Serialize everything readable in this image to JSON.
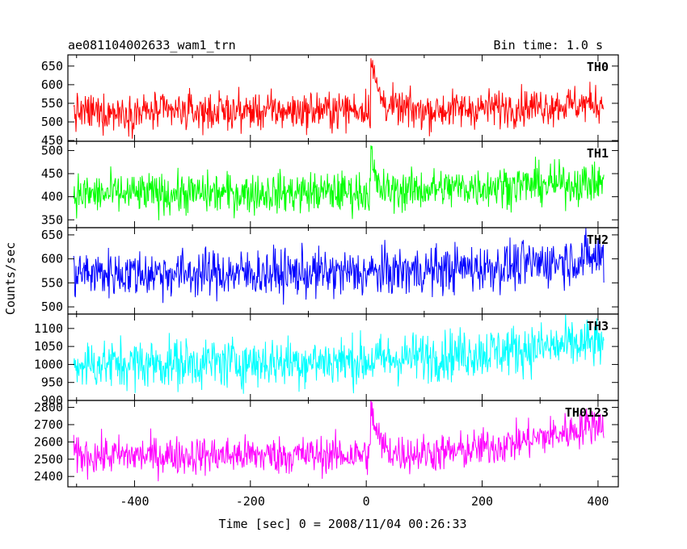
{
  "chart_data": {
    "type": "line",
    "title": "ae081104002633_wam1_trn",
    "subtitle": "Bin time: 1.0 s",
    "xlabel": "Time [sec] 0 = 2008/11/04 00:26:33",
    "ylabel": "Counts/sec",
    "xlim": [
      -515,
      435
    ],
    "xticks": [
      -400,
      -200,
      0,
      200,
      400
    ],
    "x_range": [
      -505,
      410
    ],
    "grid": false,
    "panels": [
      {
        "name": "TH0",
        "color": "#ff0000",
        "ylim": [
          448,
          680
        ],
        "yticks": [
          450,
          500,
          550,
          600,
          650
        ],
        "baseline": [
          [
            -505,
            525
          ],
          [
            -100,
            530
          ],
          [
            0,
            535
          ],
          [
            100,
            530
          ],
          [
            250,
            540
          ],
          [
            410,
            550
          ]
        ],
        "noise": 25,
        "spikes": [
          {
            "x": 8,
            "peak": 675,
            "decay": 12
          }
        ]
      },
      {
        "name": "TH1",
        "color": "#00ff00",
        "ylim": [
          333,
          520
        ],
        "yticks": [
          350,
          400,
          450,
          500
        ],
        "baseline": [
          [
            -505,
            405
          ],
          [
            0,
            410
          ],
          [
            250,
            425
          ],
          [
            410,
            430
          ]
        ],
        "noise": 22,
        "spikes": [
          {
            "x": 8,
            "peak": 505,
            "decay": 6
          }
        ]
      },
      {
        "name": "TH2",
        "color": "#0000ff",
        "ylim": [
          485,
          665
        ],
        "yticks": [
          500,
          550,
          600,
          650
        ],
        "baseline": [
          [
            -505,
            570
          ],
          [
            0,
            570
          ],
          [
            250,
            585
          ],
          [
            410,
            605
          ]
        ],
        "noise": 25,
        "spikes": []
      },
      {
        "name": "TH3",
        "color": "#00ffff",
        "ylim": [
          900,
          1140
        ],
        "yticks": [
          900,
          950,
          1000,
          1050,
          1100
        ],
        "baseline": [
          [
            -505,
            1000
          ],
          [
            0,
            1010
          ],
          [
            250,
            1040
          ],
          [
            410,
            1060
          ]
        ],
        "noise": 35,
        "spikes": []
      },
      {
        "name": "TH0123",
        "color": "#ff00ff",
        "ylim": [
          2340,
          2840
        ],
        "yticks": [
          2400,
          2500,
          2600,
          2700,
          2800
        ],
        "baseline": [
          [
            -505,
            2520
          ],
          [
            0,
            2525
          ],
          [
            150,
            2540
          ],
          [
            250,
            2590
          ],
          [
            350,
            2660
          ],
          [
            410,
            2720
          ]
        ],
        "noise": 55,
        "spikes": [
          {
            "x": 8,
            "peak": 2820,
            "decay": 12
          }
        ]
      }
    ]
  }
}
